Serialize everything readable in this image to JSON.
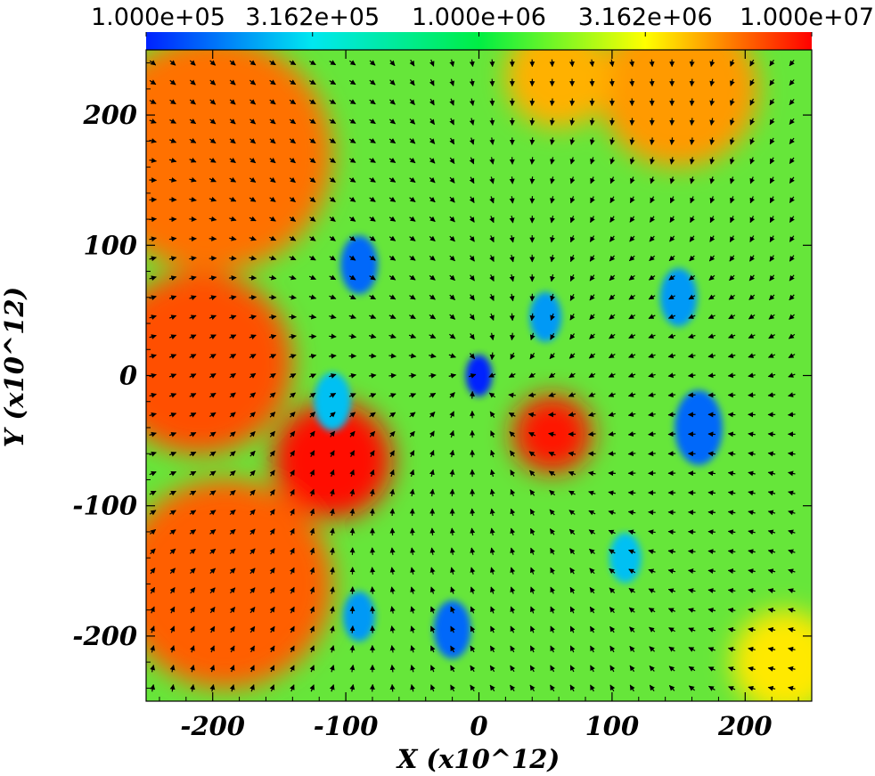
{
  "chart_data": {
    "type": "heatmap",
    "title": "",
    "xlabel": "X (x10^12)",
    "ylabel": "Y (x10^12)",
    "xlim": [
      -250,
      250
    ],
    "ylim": [
      -250,
      250
    ],
    "x_ticks": [
      -200,
      -100,
      0,
      100,
      200
    ],
    "y_ticks": [
      200,
      100,
      0,
      -100,
      -200
    ],
    "x_tick_labels": [
      "-200",
      "-100",
      "0",
      "100",
      "200"
    ],
    "y_tick_labels": [
      "200",
      "100",
      "0",
      "-100",
      "-200"
    ],
    "colorbar": {
      "scale": "log",
      "range": [
        100000,
        10000000
      ],
      "tick_values": [
        100000,
        316200,
        1000000,
        3162000,
        10000000
      ],
      "tick_labels": [
        "1.000e+05",
        "3.162e+05",
        "1.000e+06",
        "3.162e+06",
        "1.000e+07"
      ],
      "colors": [
        "#0022ff",
        "#00e8f0",
        "#00ee44",
        "#ffff00",
        "#ff0000"
      ]
    },
    "overlay": "velocity vector arrows",
    "field_regions": [
      {
        "x": -200,
        "y": 170,
        "r": 90,
        "value": 6000000
      },
      {
        "x": -210,
        "y": 10,
        "r": 70,
        "value": 7000000
      },
      {
        "x": -190,
        "y": -160,
        "r": 80,
        "value": 6500000
      },
      {
        "x": -110,
        "y": -65,
        "r": 45,
        "value": 9500000
      },
      {
        "x": 55,
        "y": -45,
        "r": 30,
        "value": 9000000
      },
      {
        "x": 150,
        "y": 220,
        "r": 60,
        "value": 5000000
      },
      {
        "x": 60,
        "y": 230,
        "r": 40,
        "value": 4500000
      },
      {
        "x": 230,
        "y": -220,
        "r": 40,
        "value": 3500000
      },
      {
        "x": 0,
        "y": 0,
        "r": 10,
        "value": 100000
      },
      {
        "x": -90,
        "y": 85,
        "r": 14,
        "value": 150000
      },
      {
        "x": 50,
        "y": 45,
        "r": 12,
        "value": 200000
      },
      {
        "x": 165,
        "y": -40,
        "r": 18,
        "value": 150000
      },
      {
        "x": 150,
        "y": 60,
        "r": 14,
        "value": 200000
      },
      {
        "x": -110,
        "y": -20,
        "r": 14,
        "value": 250000
      },
      {
        "x": -20,
        "y": -195,
        "r": 14,
        "value": 150000
      },
      {
        "x": -90,
        "y": -185,
        "r": 12,
        "value": 200000
      },
      {
        "x": 110,
        "y": -140,
        "r": 12,
        "value": 250000
      }
    ]
  }
}
